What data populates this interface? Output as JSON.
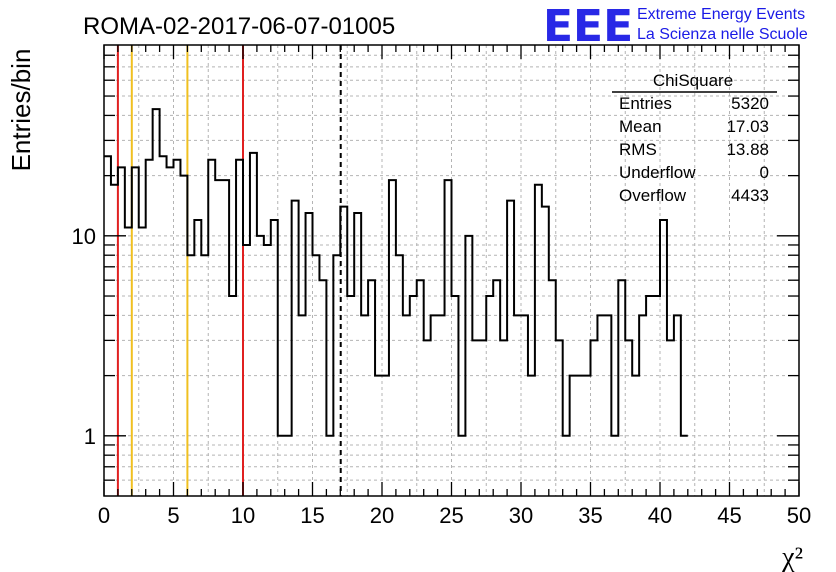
{
  "title": "ROMA-02-2017-06-07-01005",
  "logo": {
    "mark": "EEE",
    "line1": "Extreme Energy Events",
    "line2": "La Scienza nelle Scuole",
    "color": "#2020e0"
  },
  "stats": {
    "name": "ChiSquare",
    "rows": [
      {
        "label": "Entries",
        "value": "5320"
      },
      {
        "label": "Mean",
        "value": "17.03"
      },
      {
        "label": "RMS",
        "value": "13.88"
      },
      {
        "label": "Underflow",
        "value": "0"
      },
      {
        "label": "Overflow",
        "value": "4433"
      }
    ]
  },
  "chart_data": {
    "type": "histogram",
    "title": "ROMA-02-2017-06-07-01005",
    "xlabel": "χ²",
    "ylabel": "Entries/bin",
    "xlim": [
      0,
      50
    ],
    "ylim": [
      0.5,
      90
    ],
    "yscale": "log",
    "grid": true,
    "bin_width": 0.5,
    "x_ticks": [
      0,
      5,
      10,
      15,
      20,
      25,
      30,
      35,
      40,
      45,
      50
    ],
    "y_tick_labels": [
      {
        "value": 1,
        "label": "1"
      },
      {
        "value": 10,
        "label": "10"
      }
    ],
    "values": [
      25,
      18,
      22,
      11,
      22,
      11,
      24,
      43,
      25,
      22,
      24,
      20,
      8,
      12,
      8,
      24,
      19,
      19,
      5,
      24,
      9,
      26,
      10,
      9,
      12,
      1,
      1,
      15,
      4,
      13,
      8,
      6,
      1,
      8,
      14,
      5,
      13,
      4,
      6,
      2,
      2,
      19,
      8,
      4,
      5,
      6,
      3,
      4,
      4,
      19,
      5,
      1,
      10,
      3,
      3,
      5,
      6,
      3,
      15,
      4,
      4,
      2,
      18,
      14,
      6,
      3,
      1,
      2,
      2,
      2,
      3,
      4,
      4,
      1,
      6,
      3,
      2,
      4,
      5,
      5,
      12,
      3,
      4,
      1
    ],
    "vertical_lines": [
      {
        "x": 1,
        "color": "#e02020",
        "style": "solid"
      },
      {
        "x": 2,
        "color": "#f0c020",
        "style": "solid"
      },
      {
        "x": 6,
        "color": "#f0c020",
        "style": "solid"
      },
      {
        "x": 10,
        "color": "#e02020",
        "style": "solid"
      },
      {
        "x": 17.03,
        "color": "#000000",
        "style": "dashed"
      }
    ],
    "line_color": "#000000"
  }
}
